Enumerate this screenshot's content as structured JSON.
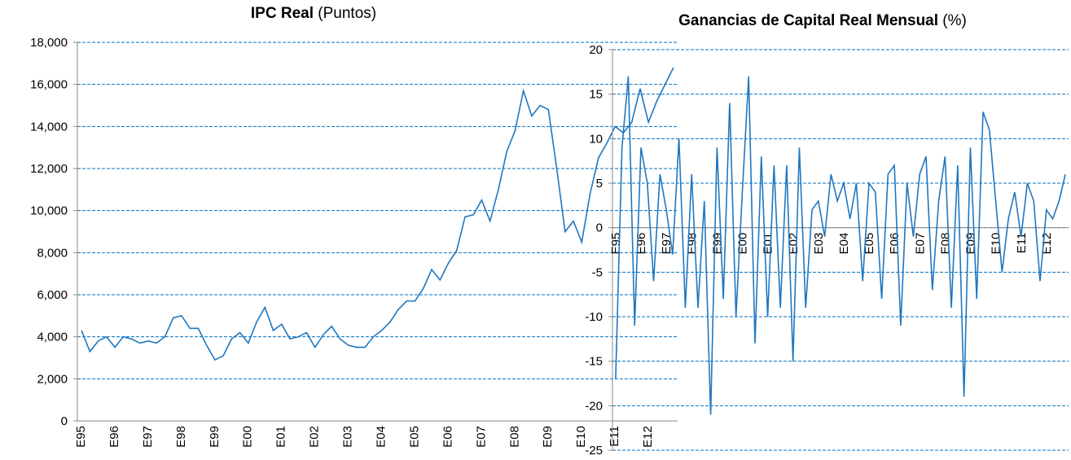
{
  "chart_data": [
    {
      "type": "line",
      "title": "IPC Real",
      "title_unit": "(Puntos)",
      "color": "#1f77c0",
      "grid": true,
      "categories": [
        "E95",
        null,
        null,
        null,
        "E96",
        null,
        null,
        null,
        "E97",
        null,
        null,
        null,
        "E98",
        null,
        null,
        null,
        "E99",
        null,
        null,
        null,
        "E00",
        null,
        null,
        null,
        "E01",
        null,
        null,
        null,
        "E02",
        null,
        null,
        null,
        "E03",
        null,
        null,
        null,
        "E04",
        null,
        null,
        null,
        "E05",
        null,
        null,
        null,
        "E06",
        null,
        null,
        null,
        "E07",
        null,
        null,
        null,
        "E08",
        null,
        null,
        null,
        "E09",
        null,
        null,
        null,
        "E10",
        null,
        null,
        null,
        "E11",
        null,
        null,
        null,
        "E12",
        null,
        null,
        null
      ],
      "values": [
        4300,
        3300,
        3800,
        4000,
        3500,
        4000,
        3900,
        3700,
        3800,
        3700,
        4000,
        4900,
        5000,
        4400,
        4400,
        3600,
        2900,
        3100,
        3900,
        4200,
        3700,
        4700,
        5400,
        4300,
        4600,
        3900,
        4000,
        4200,
        3500,
        4100,
        4500,
        3900,
        3600,
        3500,
        3500,
        4000,
        4300,
        4700,
        5300,
        5700,
        5700,
        6300,
        7200,
        6700,
        7500,
        8100,
        9700,
        9800,
        10500,
        9500,
        11000,
        12800,
        13800,
        15700,
        14500,
        15000,
        14800,
        12000,
        9000,
        9500,
        8500,
        10800,
        12500,
        13200,
        14000,
        13700,
        14200,
        15800,
        14200,
        15200,
        16000,
        16800
      ],
      "ylim": [
        0,
        18000
      ],
      "yticks": [
        0,
        {
          "value": 2000,
          "label": "2,000"
        },
        {
          "value": 4000,
          "label": "4,000"
        },
        {
          "value": 6000,
          "label": "6,000"
        },
        {
          "value": 8000,
          "label": "8,000"
        },
        {
          "value": 10000,
          "label": "10,000"
        },
        {
          "value": 12000,
          "label": "12,000"
        },
        {
          "value": 14000,
          "label": "14,000"
        },
        {
          "value": 16000,
          "label": "16,000"
        },
        {
          "value": 18000,
          "label": "18,000"
        }
      ]
    },
    {
      "type": "line",
      "title": "Ganancias de Capital Real Mensual",
      "title_unit": "(%)",
      "color": "#1f77c0",
      "grid": true,
      "categories": [
        "E95",
        null,
        null,
        null,
        "E96",
        null,
        null,
        null,
        "E97",
        null,
        null,
        null,
        "E98",
        null,
        null,
        null,
        "E99",
        null,
        null,
        null,
        "E00",
        null,
        null,
        null,
        "E01",
        null,
        null,
        null,
        "E02",
        null,
        null,
        null,
        "E03",
        null,
        null,
        null,
        "E04",
        null,
        null,
        null,
        "E05",
        null,
        null,
        null,
        "E06",
        null,
        null,
        null,
        "E07",
        null,
        null,
        null,
        "E08",
        null,
        null,
        null,
        "E09",
        null,
        null,
        null,
        "E10",
        null,
        null,
        null,
        "E11",
        null,
        null,
        null,
        "E12",
        null,
        null,
        null
      ],
      "values": [
        -17,
        9,
        17,
        -11,
        9,
        5,
        -6,
        6,
        2,
        -3,
        10,
        -9,
        6,
        -9,
        3,
        -21,
        9,
        -8,
        14,
        -10,
        4,
        17,
        -13,
        8,
        -10,
        7,
        -9,
        7,
        -15,
        9,
        -9,
        2,
        3,
        -1,
        6,
        3,
        5,
        1,
        5,
        -6,
        5,
        4,
        -8,
        6,
        7,
        -11,
        5,
        -1,
        6,
        8,
        -7,
        3,
        8,
        -9,
        7,
        -19,
        9,
        -8,
        13,
        11,
        3,
        -5,
        1,
        4,
        -1,
        5,
        3,
        -6,
        2,
        1,
        3,
        6
      ],
      "ylim": [
        -25,
        20
      ],
      "yticks": [
        -25,
        -20,
        -15,
        -10,
        -5,
        0,
        5,
        10,
        15,
        20
      ]
    }
  ]
}
